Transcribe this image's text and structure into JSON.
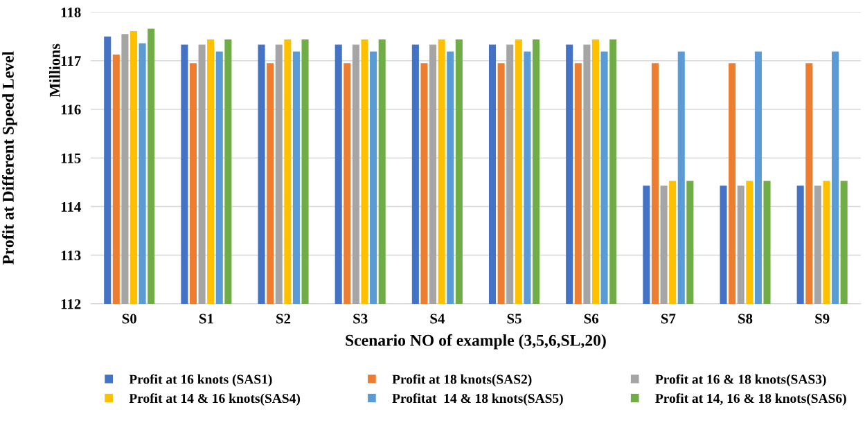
{
  "chart_data": {
    "type": "bar",
    "xlabel": "Scenario NO of example (3,5,6,SL,20)",
    "ylabel": "Profit at Different Speed Level",
    "annotations": [
      "Millions"
    ],
    "categories": [
      "S0",
      "S1",
      "S2",
      "S3",
      "S4",
      "S5",
      "S6",
      "S7",
      "S8",
      "S9"
    ],
    "series": [
      {
        "name": "Profit at 16 knots (SAS1)",
        "color": "#4472c4",
        "values": [
          117.5,
          117.33,
          117.33,
          117.33,
          117.33,
          117.33,
          117.33,
          114.43,
          114.43,
          114.43
        ]
      },
      {
        "name": "Profit at 18 knots(SAS2)",
        "color": "#ed7d31",
        "values": [
          117.13,
          116.95,
          116.95,
          116.95,
          116.95,
          116.95,
          116.95,
          116.95,
          116.95,
          116.95
        ]
      },
      {
        "name": "Profit at 16 & 18 knots(SAS3)",
        "color": "#a5a5a5",
        "values": [
          117.55,
          117.33,
          117.33,
          117.33,
          117.33,
          117.33,
          117.33,
          114.43,
          114.43,
          114.43
        ]
      },
      {
        "name": "Profit at 14 & 16 knots(SAS4)",
        "color": "#ffc000",
        "values": [
          117.61,
          117.44,
          117.44,
          117.44,
          117.44,
          117.44,
          117.44,
          114.53,
          114.53,
          114.53
        ]
      },
      {
        "name": "Profitat  14 & 18 knots(SAS5)",
        "color": "#5b9bd5",
        "values": [
          117.36,
          117.19,
          117.19,
          117.19,
          117.19,
          117.19,
          117.19,
          117.19,
          117.19,
          117.19
        ]
      },
      {
        "name": "Profit at 14, 16 & 18 knots(SAS6)",
        "color": "#70ad47",
        "values": [
          117.66,
          117.44,
          117.44,
          117.44,
          117.44,
          117.44,
          117.44,
          114.53,
          114.53,
          114.53
        ]
      }
    ],
    "ylim": [
      112,
      118
    ],
    "yticks": [
      112,
      113,
      114,
      115,
      116,
      117,
      118
    ],
    "grid": "y",
    "legend": "bottom"
  }
}
